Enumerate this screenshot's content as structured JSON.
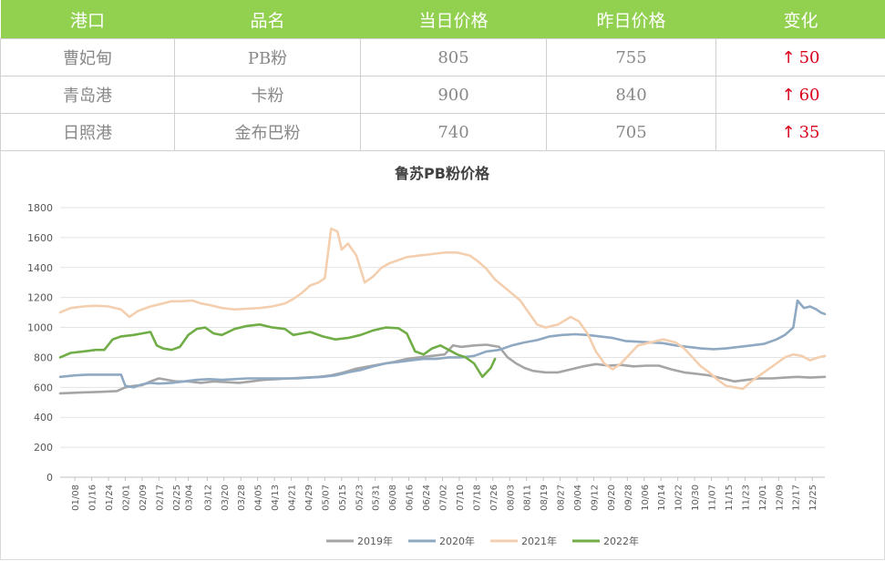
{
  "table": {
    "headers": [
      "港口",
      "品名",
      "当日价格",
      "昨日价格",
      "变化"
    ],
    "rows": [
      {
        "port": "曹妃甸",
        "product": "PB粉",
        "today": "805",
        "yesterday": "755",
        "change": "50"
      },
      {
        "port": "青岛港",
        "product": "卡粉",
        "today": "900",
        "yesterday": "840",
        "change": "60"
      },
      {
        "port": "日照港",
        "product": "金布巴粉",
        "today": "740",
        "yesterday": "705",
        "change": "35"
      }
    ],
    "change_arrow": "↑"
  },
  "chart_data": {
    "type": "line",
    "title": "鲁苏PB粉价格",
    "ylim": [
      0,
      1800
    ],
    "yticks": [
      0,
      200,
      400,
      600,
      800,
      1000,
      1200,
      1400,
      1600,
      1800
    ],
    "x_range_days": [
      1,
      365
    ],
    "xticks": [
      {
        "day": 8,
        "label": "01/08"
      },
      {
        "day": 16,
        "label": "01/16"
      },
      {
        "day": 24,
        "label": "01/24"
      },
      {
        "day": 32,
        "label": "02/01"
      },
      {
        "day": 40,
        "label": "02/09"
      },
      {
        "day": 48,
        "label": "02/17"
      },
      {
        "day": 56,
        "label": "02/25"
      },
      {
        "day": 62,
        "label": "03/04"
      },
      {
        "day": 71,
        "label": "03/12"
      },
      {
        "day": 79,
        "label": "03/20"
      },
      {
        "day": 87,
        "label": "03/28"
      },
      {
        "day": 95,
        "label": "04/05"
      },
      {
        "day": 103,
        "label": "04/13"
      },
      {
        "day": 111,
        "label": "04/21"
      },
      {
        "day": 119,
        "label": "04/29"
      },
      {
        "day": 127,
        "label": "05/07"
      },
      {
        "day": 135,
        "label": "05/15"
      },
      {
        "day": 143,
        "label": "05/23"
      },
      {
        "day": 151,
        "label": "05/31"
      },
      {
        "day": 159,
        "label": "06/08"
      },
      {
        "day": 167,
        "label": "06/16"
      },
      {
        "day": 175,
        "label": "06/24"
      },
      {
        "day": 183,
        "label": "07/02"
      },
      {
        "day": 191,
        "label": "07/10"
      },
      {
        "day": 199,
        "label": "07/18"
      },
      {
        "day": 207,
        "label": "07/26"
      },
      {
        "day": 215,
        "label": "08/03"
      },
      {
        "day": 223,
        "label": "08/11"
      },
      {
        "day": 231,
        "label": "08/19"
      },
      {
        "day": 239,
        "label": "08/27"
      },
      {
        "day": 247,
        "label": "09/04"
      },
      {
        "day": 255,
        "label": "09/12"
      },
      {
        "day": 263,
        "label": "09/20"
      },
      {
        "day": 271,
        "label": "09/28"
      },
      {
        "day": 279,
        "label": "10/06"
      },
      {
        "day": 287,
        "label": "10/14"
      },
      {
        "day": 295,
        "label": "10/22"
      },
      {
        "day": 303,
        "label": "10/30"
      },
      {
        "day": 311,
        "label": "11/07"
      },
      {
        "day": 319,
        "label": "11/15"
      },
      {
        "day": 327,
        "label": "11/23"
      },
      {
        "day": 335,
        "label": "12/01"
      },
      {
        "day": 343,
        "label": "12/09"
      },
      {
        "day": 351,
        "label": "12/17"
      },
      {
        "day": 359,
        "label": "12/25"
      }
    ],
    "series": [
      {
        "name": "2019年",
        "color": "#a5a5a5",
        "points": [
          [
            1,
            560
          ],
          [
            10,
            565
          ],
          [
            20,
            570
          ],
          [
            28,
            575
          ],
          [
            32,
            600
          ],
          [
            36,
            610
          ],
          [
            40,
            615
          ],
          [
            44,
            640
          ],
          [
            48,
            660
          ],
          [
            52,
            650
          ],
          [
            56,
            640
          ],
          [
            62,
            640
          ],
          [
            68,
            630
          ],
          [
            74,
            640
          ],
          [
            80,
            635
          ],
          [
            86,
            630
          ],
          [
            92,
            640
          ],
          [
            98,
            650
          ],
          [
            104,
            655
          ],
          [
            110,
            660
          ],
          [
            118,
            665
          ],
          [
            124,
            670
          ],
          [
            130,
            680
          ],
          [
            136,
            700
          ],
          [
            142,
            725
          ],
          [
            148,
            740
          ],
          [
            154,
            755
          ],
          [
            160,
            770
          ],
          [
            166,
            790
          ],
          [
            172,
            800
          ],
          [
            178,
            810
          ],
          [
            184,
            820
          ],
          [
            188,
            880
          ],
          [
            192,
            870
          ],
          [
            198,
            880
          ],
          [
            204,
            885
          ],
          [
            210,
            870
          ],
          [
            214,
            800
          ],
          [
            218,
            760
          ],
          [
            222,
            730
          ],
          [
            226,
            710
          ],
          [
            232,
            700
          ],
          [
            238,
            700
          ],
          [
            244,
            720
          ],
          [
            250,
            740
          ],
          [
            256,
            755
          ],
          [
            262,
            745
          ],
          [
            268,
            750
          ],
          [
            274,
            740
          ],
          [
            280,
            745
          ],
          [
            286,
            745
          ],
          [
            292,
            720
          ],
          [
            298,
            700
          ],
          [
            304,
            690
          ],
          [
            310,
            680
          ],
          [
            316,
            660
          ],
          [
            322,
            640
          ],
          [
            328,
            650
          ],
          [
            334,
            660
          ],
          [
            340,
            660
          ],
          [
            346,
            665
          ],
          [
            352,
            670
          ],
          [
            358,
            665
          ],
          [
            365,
            670
          ]
        ]
      },
      {
        "name": "2020年",
        "color": "#8ea9c1",
        "points": [
          [
            1,
            670
          ],
          [
            8,
            680
          ],
          [
            14,
            685
          ],
          [
            20,
            685
          ],
          [
            26,
            685
          ],
          [
            30,
            685
          ],
          [
            32,
            610
          ],
          [
            36,
            600
          ],
          [
            40,
            620
          ],
          [
            44,
            630
          ],
          [
            48,
            625
          ],
          [
            54,
            630
          ],
          [
            60,
            640
          ],
          [
            66,
            650
          ],
          [
            72,
            655
          ],
          [
            78,
            650
          ],
          [
            84,
            655
          ],
          [
            90,
            660
          ],
          [
            96,
            660
          ],
          [
            102,
            660
          ],
          [
            108,
            660
          ],
          [
            114,
            660
          ],
          [
            120,
            665
          ],
          [
            126,
            670
          ],
          [
            132,
            680
          ],
          [
            138,
            700
          ],
          [
            144,
            715
          ],
          [
            150,
            740
          ],
          [
            156,
            760
          ],
          [
            162,
            770
          ],
          [
            168,
            780
          ],
          [
            174,
            790
          ],
          [
            180,
            790
          ],
          [
            186,
            800
          ],
          [
            192,
            800
          ],
          [
            198,
            810
          ],
          [
            204,
            840
          ],
          [
            210,
            850
          ],
          [
            216,
            880
          ],
          [
            222,
            900
          ],
          [
            228,
            915
          ],
          [
            234,
            940
          ],
          [
            240,
            950
          ],
          [
            246,
            955
          ],
          [
            252,
            950
          ],
          [
            258,
            940
          ],
          [
            264,
            930
          ],
          [
            270,
            910
          ],
          [
            276,
            905
          ],
          [
            282,
            900
          ],
          [
            288,
            895
          ],
          [
            294,
            880
          ],
          [
            300,
            870
          ],
          [
            306,
            860
          ],
          [
            312,
            855
          ],
          [
            318,
            860
          ],
          [
            324,
            870
          ],
          [
            330,
            880
          ],
          [
            336,
            890
          ],
          [
            342,
            920
          ],
          [
            346,
            950
          ],
          [
            350,
            1000
          ],
          [
            352,
            1180
          ],
          [
            355,
            1130
          ],
          [
            358,
            1140
          ],
          [
            361,
            1120
          ],
          [
            363,
            1100
          ],
          [
            365,
            1090
          ]
        ]
      },
      {
        "name": "2021年",
        "color": "#f4cfaf",
        "points": [
          [
            1,
            1100
          ],
          [
            6,
            1130
          ],
          [
            12,
            1140
          ],
          [
            18,
            1145
          ],
          [
            24,
            1140
          ],
          [
            30,
            1120
          ],
          [
            34,
            1070
          ],
          [
            38,
            1110
          ],
          [
            44,
            1140
          ],
          [
            50,
            1160
          ],
          [
            54,
            1175
          ],
          [
            58,
            1175
          ],
          [
            64,
            1180
          ],
          [
            68,
            1160
          ],
          [
            72,
            1150
          ],
          [
            78,
            1130
          ],
          [
            84,
            1120
          ],
          [
            90,
            1125
          ],
          [
            96,
            1130
          ],
          [
            102,
            1140
          ],
          [
            108,
            1160
          ],
          [
            112,
            1190
          ],
          [
            116,
            1230
          ],
          [
            120,
            1280
          ],
          [
            124,
            1300
          ],
          [
            127,
            1330
          ],
          [
            130,
            1660
          ],
          [
            133,
            1640
          ],
          [
            135,
            1520
          ],
          [
            138,
            1560
          ],
          [
            142,
            1480
          ],
          [
            146,
            1300
          ],
          [
            150,
            1340
          ],
          [
            154,
            1400
          ],
          [
            158,
            1430
          ],
          [
            162,
            1450
          ],
          [
            166,
            1470
          ],
          [
            172,
            1480
          ],
          [
            178,
            1490
          ],
          [
            184,
            1500
          ],
          [
            190,
            1500
          ],
          [
            196,
            1480
          ],
          [
            200,
            1440
          ],
          [
            204,
            1390
          ],
          [
            208,
            1320
          ],
          [
            214,
            1250
          ],
          [
            220,
            1180
          ],
          [
            224,
            1100
          ],
          [
            228,
            1020
          ],
          [
            232,
            1000
          ],
          [
            238,
            1020
          ],
          [
            244,
            1070
          ],
          [
            248,
            1040
          ],
          [
            252,
            960
          ],
          [
            256,
            840
          ],
          [
            260,
            760
          ],
          [
            264,
            720
          ],
          [
            268,
            760
          ],
          [
            272,
            820
          ],
          [
            276,
            880
          ],
          [
            282,
            900
          ],
          [
            288,
            920
          ],
          [
            294,
            900
          ],
          [
            298,
            860
          ],
          [
            302,
            800
          ],
          [
            306,
            740
          ],
          [
            310,
            700
          ],
          [
            314,
            650
          ],
          [
            318,
            610
          ],
          [
            322,
            600
          ],
          [
            326,
            590
          ],
          [
            330,
            640
          ],
          [
            334,
            680
          ],
          [
            338,
            720
          ],
          [
            342,
            760
          ],
          [
            346,
            800
          ],
          [
            350,
            820
          ],
          [
            354,
            810
          ],
          [
            358,
            780
          ],
          [
            362,
            800
          ],
          [
            365,
            810
          ]
        ]
      },
      {
        "name": "2022年",
        "color": "#70ad47",
        "points": [
          [
            1,
            800
          ],
          [
            6,
            830
          ],
          [
            12,
            840
          ],
          [
            18,
            850
          ],
          [
            22,
            850
          ],
          [
            26,
            920
          ],
          [
            30,
            940
          ],
          [
            36,
            950
          ],
          [
            40,
            960
          ],
          [
            44,
            970
          ],
          [
            47,
            880
          ],
          [
            50,
            860
          ],
          [
            54,
            850
          ],
          [
            58,
            870
          ],
          [
            62,
            950
          ],
          [
            66,
            990
          ],
          [
            70,
            1000
          ],
          [
            74,
            960
          ],
          [
            78,
            950
          ],
          [
            84,
            990
          ],
          [
            90,
            1010
          ],
          [
            96,
            1020
          ],
          [
            102,
            1000
          ],
          [
            108,
            990
          ],
          [
            112,
            950
          ],
          [
            116,
            960
          ],
          [
            120,
            970
          ],
          [
            126,
            940
          ],
          [
            132,
            920
          ],
          [
            138,
            930
          ],
          [
            144,
            950
          ],
          [
            150,
            980
          ],
          [
            156,
            1000
          ],
          [
            162,
            995
          ],
          [
            166,
            960
          ],
          [
            170,
            840
          ],
          [
            174,
            820
          ],
          [
            178,
            860
          ],
          [
            182,
            880
          ],
          [
            186,
            850
          ],
          [
            190,
            820
          ],
          [
            194,
            800
          ],
          [
            198,
            760
          ],
          [
            202,
            670
          ],
          [
            206,
            730
          ],
          [
            208,
            790
          ]
        ]
      }
    ],
    "legend": [
      "2019年",
      "2020年",
      "2021年",
      "2022年"
    ],
    "legend_position": "bottom",
    "grid": true
  }
}
